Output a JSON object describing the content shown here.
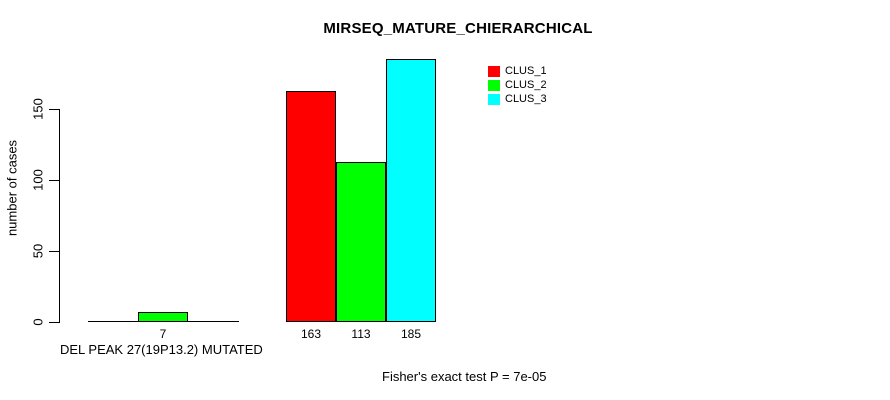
{
  "chart_data": {
    "type": "bar",
    "title": "MIRSEQ_MATURE_CHIERARCHICAL",
    "ylabel": "number of cases",
    "xlabel": "DEL PEAK 27(19P13.2) MUTATED",
    "annotation": "Fisher's exact test P = 7e-05",
    "ylim": [
      0,
      185
    ],
    "yticks": [
      0,
      50,
      100,
      150
    ],
    "grid": false,
    "legend_position": "top-right",
    "groups": [
      "DEL PEAK 27(19P13.2) MUTATED",
      ""
    ],
    "series": [
      {
        "name": "CLUS_1",
        "color": "#ff0000",
        "values": [
          0,
          163
        ]
      },
      {
        "name": "CLUS_2",
        "color": "#00ff00",
        "values": [
          7,
          113
        ]
      },
      {
        "name": "CLUS_3",
        "color": "#00ffff",
        "values": [
          0,
          185
        ]
      }
    ]
  },
  "colors": {
    "background": "#ffffff",
    "axis": "#000000",
    "text": "#000000"
  }
}
